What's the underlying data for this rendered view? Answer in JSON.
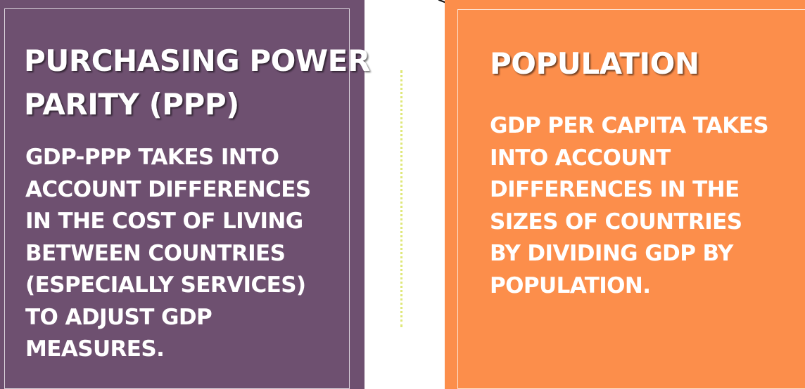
{
  "left_panel": {
    "heading_lines": [
      "PURCHASING POWER",
      "PARITY (PPP)"
    ],
    "body_lines": [
      "GDP-PPP TAKES INTO",
      "ACCOUNT DIFFERENCES",
      "IN THE COST OF LIVING",
      "BETWEEN COUNTRIES",
      "(ESPECIALLY SERVICES)",
      "TO ADJUST GDP",
      "MEASURES."
    ],
    "background_color": "#6e5070"
  },
  "right_panel": {
    "heading_lines": [
      "POPULATION"
    ],
    "body_lines": [
      "GDP PER CAPITA TAKES",
      "INTO ACCOUNT",
      "DIFFERENCES IN THE",
      "SIZES OF COUNTRIES",
      "BY DIVIDING GDP BY",
      "POPULATION."
    ],
    "background_color": "#fc8e4b"
  },
  "divider_color": "#dfe87a",
  "annotation_icon": "pen-scribble-icon"
}
